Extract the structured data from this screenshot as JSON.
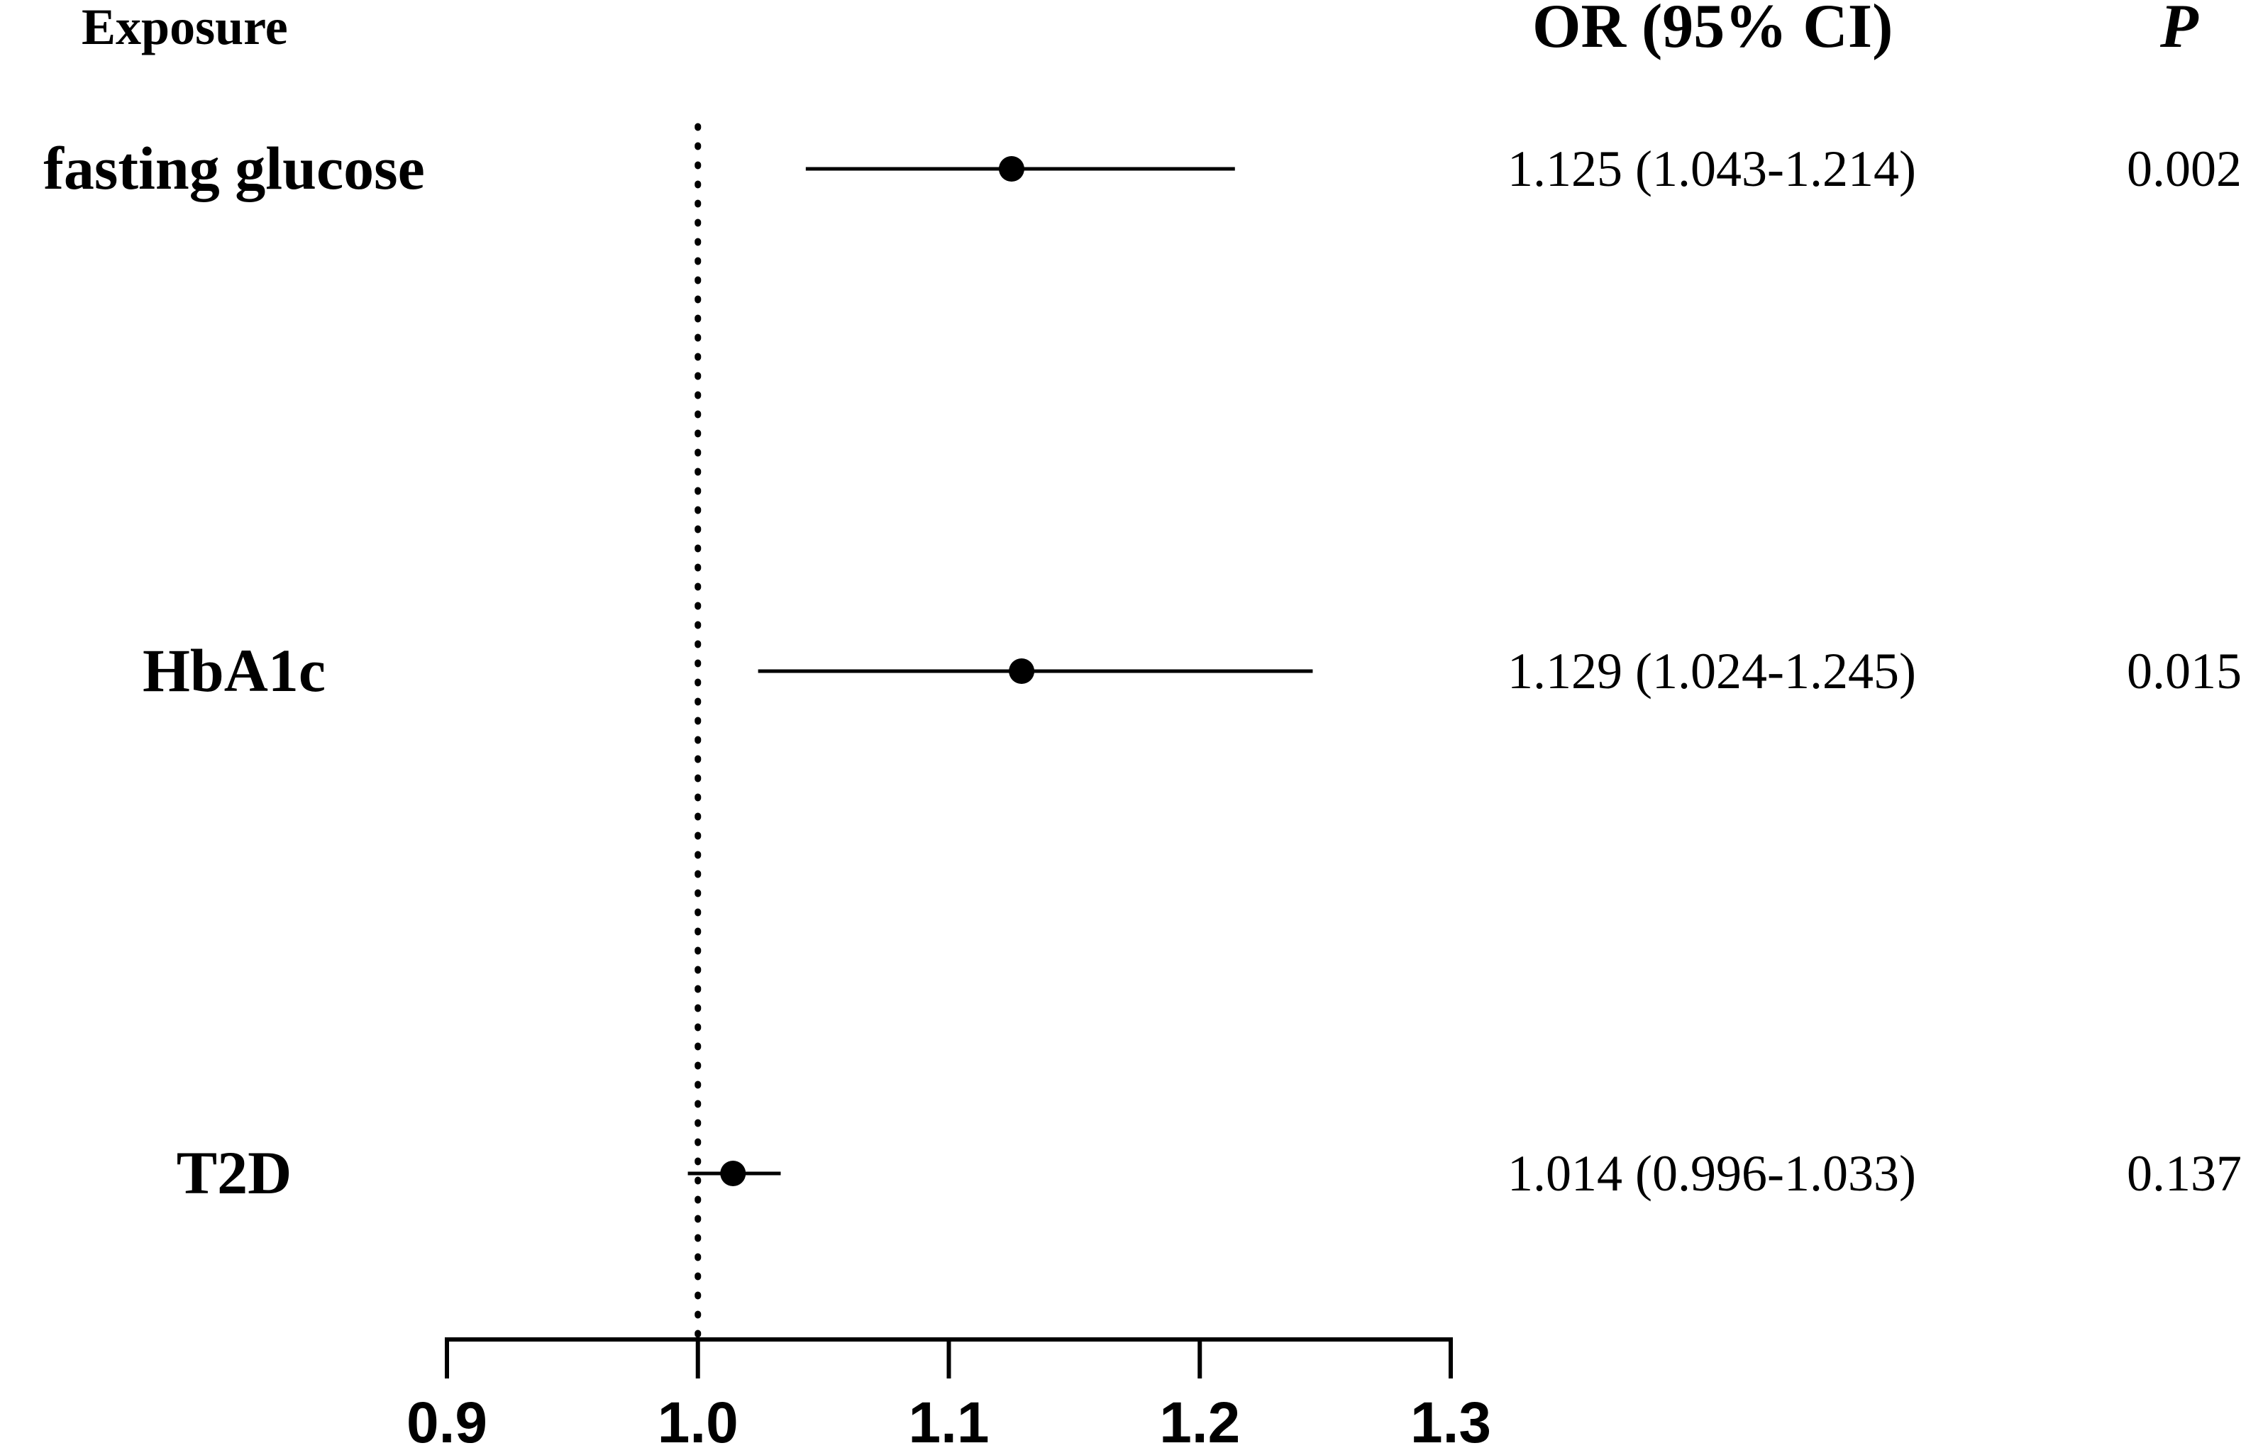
{
  "headers": {
    "exposure": "Exposure",
    "or_ci": "OR (95% CI)",
    "p": "P"
  },
  "chart_data": {
    "type": "forest",
    "x_axis": {
      "range": [
        0.9,
        1.3
      ],
      "ticks": [
        0.9,
        1.0,
        1.1,
        1.2,
        1.3
      ],
      "tick_labels": [
        "0.9",
        "1.0",
        "1.1",
        "1.2",
        "1.3"
      ],
      "reference_line": 1.0,
      "reference_style": "dotted"
    },
    "rows": [
      {
        "exposure": "fasting glucose",
        "or": 1.125,
        "ci_low": 1.043,
        "ci_high": 1.214,
        "or_text": "1.125 (1.043-1.214)",
        "p": "0.002"
      },
      {
        "exposure": "HbA1c",
        "or": 1.129,
        "ci_low": 1.024,
        "ci_high": 1.245,
        "or_text": "1.129 (1.024-1.245)",
        "p": "0.015"
      },
      {
        "exposure": "T2D",
        "or": 1.014,
        "ci_low": 0.996,
        "ci_high": 1.033,
        "or_text": "1.014 (0.996-1.033)",
        "p": "0.137"
      }
    ],
    "marker_color": "#000000",
    "grid": false
  }
}
